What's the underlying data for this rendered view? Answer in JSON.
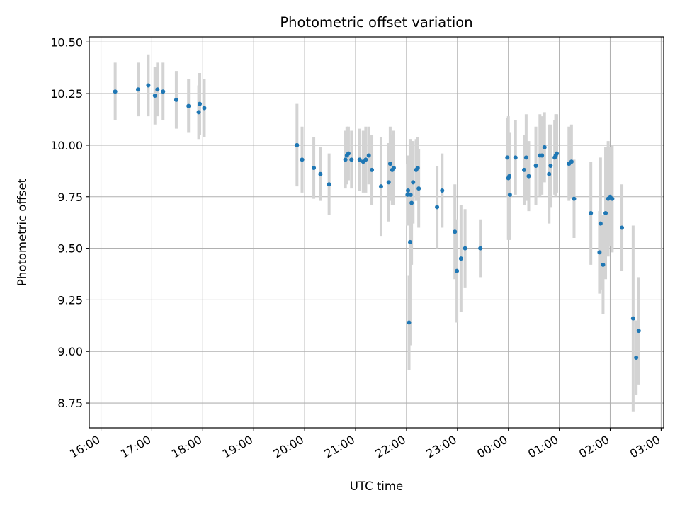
{
  "chart_data": {
    "type": "scatter",
    "title": "Photometric offset variation",
    "xlabel": "UTC time",
    "ylabel": "Photometric offset",
    "x_unit": "UTC time, hours of day (values past 24:00 fall on the following day)",
    "xlim": [
      15.77,
      27.05
    ],
    "ylim": [
      8.63,
      10.525
    ],
    "grid": true,
    "legend": "none",
    "x_ticks": [
      16,
      17,
      18,
      19,
      20,
      21,
      22,
      23,
      24,
      25,
      26,
      27
    ],
    "x_tick_labels": [
      "16:00",
      "17:00",
      "18:00",
      "19:00",
      "20:00",
      "21:00",
      "22:00",
      "23:00",
      "00:00",
      "01:00",
      "02:00",
      "03:00"
    ],
    "y_ticks": [
      8.75,
      9.0,
      9.25,
      9.5,
      9.75,
      10.0,
      10.25,
      10.5
    ],
    "y_tick_labels": [
      "8.75",
      "9.00",
      "9.25",
      "9.50",
      "9.75",
      "10.00",
      "10.25",
      "10.50"
    ],
    "colors": {
      "point": "#1f77b4",
      "errorbar": "#d3d3d3",
      "grid": "#b0b0b0"
    },
    "series": [
      {
        "x": [
          16.28,
          16.73,
          16.93,
          17.06,
          17.11,
          17.22,
          17.48,
          17.72,
          17.92,
          17.94,
          18.03,
          19.85,
          19.95,
          20.18,
          20.31,
          20.48,
          20.8,
          20.83,
          20.86,
          20.92,
          21.08,
          21.15,
          21.2,
          21.26,
          21.32,
          21.5,
          21.65,
          21.68,
          21.72,
          21.75,
          22.02,
          22.03,
          22.05,
          22.07,
          22.08,
          22.1,
          22.13,
          22.19,
          22.22,
          22.24,
          22.6,
          22.7,
          22.95,
          22.99,
          23.07,
          23.15,
          23.45,
          23.98,
          24.0,
          24.02,
          24.03,
          24.14,
          24.31,
          24.35,
          24.4,
          24.54,
          24.62,
          24.66,
          24.71,
          24.8,
          24.83,
          24.91,
          24.93,
          24.95,
          25.19,
          25.24,
          25.29,
          25.62,
          25.79,
          25.81,
          25.86,
          25.91,
          25.96,
          26.0,
          26.04,
          26.23,
          26.45,
          26.51,
          26.56
        ],
        "y": [
          10.26,
          10.27,
          10.29,
          10.24,
          10.27,
          10.26,
          10.22,
          10.19,
          10.16,
          10.2,
          10.18,
          10.0,
          9.93,
          9.89,
          9.86,
          9.81,
          9.93,
          9.95,
          9.96,
          9.93,
          9.93,
          9.92,
          9.93,
          9.95,
          9.88,
          9.8,
          9.82,
          9.91,
          9.88,
          9.89,
          9.76,
          9.78,
          9.14,
          9.53,
          9.76,
          9.72,
          9.82,
          9.88,
          9.89,
          9.79,
          9.7,
          9.78,
          9.58,
          9.39,
          9.45,
          9.5,
          9.5,
          9.94,
          9.84,
          9.85,
          9.76,
          9.94,
          9.88,
          9.94,
          9.85,
          9.9,
          9.95,
          9.95,
          9.99,
          9.86,
          9.9,
          9.94,
          9.95,
          9.96,
          9.91,
          9.92,
          9.74,
          9.67,
          9.48,
          9.62,
          9.42,
          9.67,
          9.74,
          9.75,
          9.74,
          9.6,
          9.16,
          8.97,
          9.1
        ],
        "yerr": [
          0.14,
          0.13,
          0.15,
          0.14,
          0.13,
          0.14,
          0.14,
          0.13,
          0.13,
          0.15,
          0.14,
          0.2,
          0.16,
          0.15,
          0.13,
          0.15,
          0.14,
          0.14,
          0.13,
          0.14,
          0.15,
          0.15,
          0.16,
          0.14,
          0.17,
          0.24,
          0.19,
          0.18,
          0.17,
          0.18,
          0.15,
          0.17,
          0.23,
          0.5,
          0.27,
          0.3,
          0.2,
          0.15,
          0.15,
          0.19,
          0.2,
          0.18,
          0.23,
          0.25,
          0.26,
          0.19,
          0.14,
          0.19,
          0.3,
          0.21,
          0.22,
          0.18,
          0.17,
          0.21,
          0.17,
          0.19,
          0.2,
          0.19,
          0.17,
          0.24,
          0.2,
          0.18,
          0.2,
          0.19,
          0.18,
          0.18,
          0.19,
          0.25,
          0.2,
          0.32,
          0.24,
          0.32,
          0.28,
          0.24,
          0.26,
          0.21,
          0.45,
          0.18,
          0.26
        ]
      }
    ]
  }
}
